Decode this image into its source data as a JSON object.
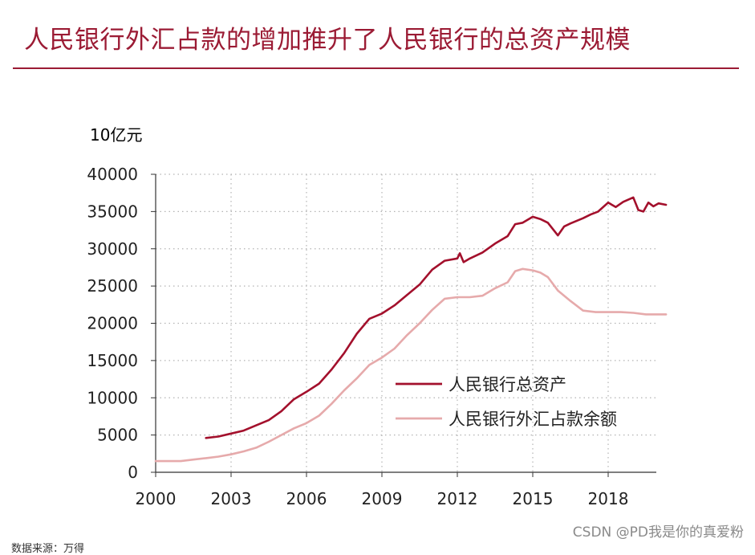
{
  "page": {
    "title": "人民银行外汇占款的增加推升了人民银行的总资产规模",
    "watermark": "CSDN @PD我是你的真爱粉",
    "source_note": "数据来源：万得"
  },
  "colors": {
    "title": "#9b1b34",
    "total_assets": "#a3102c",
    "fx_reserves": "#e6aaab",
    "grid": "#b3b3b3",
    "axis": "#333333"
  },
  "chart_data": {
    "type": "line",
    "title": "人民银行外汇占款的增加推升了人民银行的总资产规模",
    "ylabel": "10亿元",
    "xlabel": "",
    "ylim": [
      0,
      40000
    ],
    "xlim": [
      2000,
      2020.5
    ],
    "yticks": [
      0,
      5000,
      10000,
      15000,
      20000,
      25000,
      30000,
      35000,
      40000
    ],
    "xticks": [
      2000,
      2003,
      2006,
      2009,
      2012,
      2015,
      2018
    ],
    "ytick_labels": [
      "0",
      "5000",
      "10000",
      "15000",
      "20000",
      "25000",
      "30000",
      "35000",
      "40000"
    ],
    "xtick_labels": [
      "2000",
      "2003",
      "2006",
      "2009",
      "2012",
      "2015",
      "2018"
    ],
    "grid": true,
    "legend_position": "lower-right",
    "series": [
      {
        "name": "人民银行总资产",
        "color": "#a3102c",
        "x": [
          2002.0,
          2002.5,
          2003.0,
          2003.5,
          2004.0,
          2004.5,
          2005.0,
          2005.5,
          2006.0,
          2006.5,
          2007.0,
          2007.5,
          2008.0,
          2008.5,
          2009.0,
          2009.5,
          2010.0,
          2010.5,
          2011.0,
          2011.5,
          2012.0,
          2012.1,
          2012.25,
          2012.5,
          2013.0,
          2013.5,
          2014.0,
          2014.3,
          2014.6,
          2015.0,
          2015.3,
          2015.6,
          2016.0,
          2016.25,
          2016.5,
          2017.0,
          2017.3,
          2017.6,
          2018.0,
          2018.3,
          2018.6,
          2019.0,
          2019.2,
          2019.4,
          2019.6,
          2019.8,
          2020.0,
          2020.3
        ],
        "values": [
          4600,
          4800,
          5200,
          5600,
          6300,
          7000,
          8200,
          9800,
          10800,
          11900,
          13800,
          16000,
          18600,
          20600,
          21300,
          22400,
          23800,
          25200,
          27200,
          28400,
          28700,
          29400,
          28200,
          28700,
          29500,
          30700,
          31700,
          33300,
          33500,
          34300,
          34000,
          33500,
          31800,
          33000,
          33400,
          34100,
          34600,
          35000,
          36200,
          35600,
          36300,
          36900,
          35200,
          35000,
          36200,
          35700,
          36100,
          35900
        ]
      },
      {
        "name": "人民银行外汇占款余额",
        "color": "#e6aaab",
        "x": [
          2000.0,
          2000.5,
          2001.0,
          2001.5,
          2002.0,
          2002.5,
          2003.0,
          2003.5,
          2004.0,
          2004.5,
          2005.0,
          2005.5,
          2006.0,
          2006.5,
          2007.0,
          2007.5,
          2008.0,
          2008.5,
          2009.0,
          2009.5,
          2010.0,
          2010.5,
          2011.0,
          2011.5,
          2012.0,
          2012.5,
          2013.0,
          2013.5,
          2014.0,
          2014.3,
          2014.6,
          2015.0,
          2015.3,
          2015.6,
          2016.0,
          2016.5,
          2017.0,
          2017.5,
          2018.0,
          2018.5,
          2019.0,
          2019.5,
          2020.3
        ],
        "values": [
          1500,
          1500,
          1500,
          1700,
          1900,
          2100,
          2400,
          2800,
          3300,
          4100,
          5000,
          5900,
          6600,
          7600,
          9200,
          11000,
          12600,
          14400,
          15400,
          16600,
          18400,
          20000,
          21800,
          23300,
          23500,
          23500,
          23700,
          24700,
          25500,
          27000,
          27300,
          27100,
          26800,
          26200,
          24400,
          23000,
          21700,
          21500,
          21500,
          21500,
          21400,
          21200,
          21200
        ]
      }
    ]
  }
}
